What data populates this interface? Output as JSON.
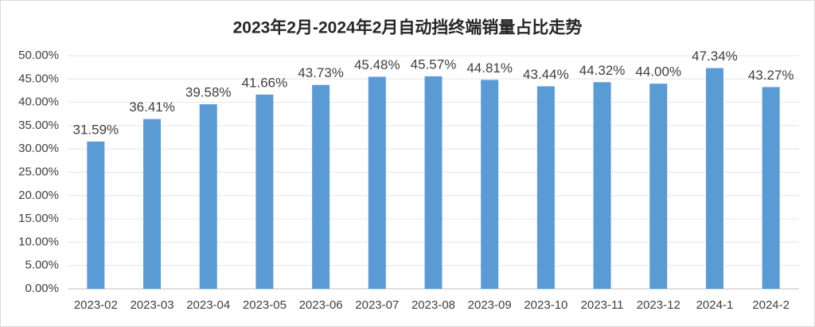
{
  "chart_data": {
    "type": "bar",
    "title": "2023年2月-2024年2月自动挡终端销量占比走势",
    "categories": [
      "2023-02",
      "2023-03",
      "2023-04",
      "2023-05",
      "2023-06",
      "2023-07",
      "2023-08",
      "2023-09",
      "2023-10",
      "2023-11",
      "2023-12",
      "2024-1",
      "2024-2"
    ],
    "values": [
      31.59,
      36.41,
      39.58,
      41.66,
      43.73,
      45.48,
      45.57,
      44.81,
      43.44,
      44.32,
      44.0,
      47.34,
      43.27
    ],
    "value_labels": [
      "31.59%",
      "36.41%",
      "39.58%",
      "41.66%",
      "43.73%",
      "45.48%",
      "45.57%",
      "44.81%",
      "43.44%",
      "44.32%",
      "44.00%",
      "47.34%",
      "43.27%"
    ],
    "color": "#5b9bd5",
    "ylim": [
      0,
      50
    ],
    "yticks": [
      {
        "value": 0,
        "label": "0.00%"
      },
      {
        "value": 5,
        "label": "5.00%"
      },
      {
        "value": 10,
        "label": "10.00%"
      },
      {
        "value": 15,
        "label": "15.00%"
      },
      {
        "value": 20,
        "label": "20.00%"
      },
      {
        "value": 25,
        "label": "25.00%"
      },
      {
        "value": 30,
        "label": "30.00%"
      },
      {
        "value": 35,
        "label": "35.00%"
      },
      {
        "value": 40,
        "label": "40.00%"
      },
      {
        "value": 45,
        "label": "45.00%"
      },
      {
        "value": 50,
        "label": "50.00%"
      }
    ],
    "grid": true
  }
}
